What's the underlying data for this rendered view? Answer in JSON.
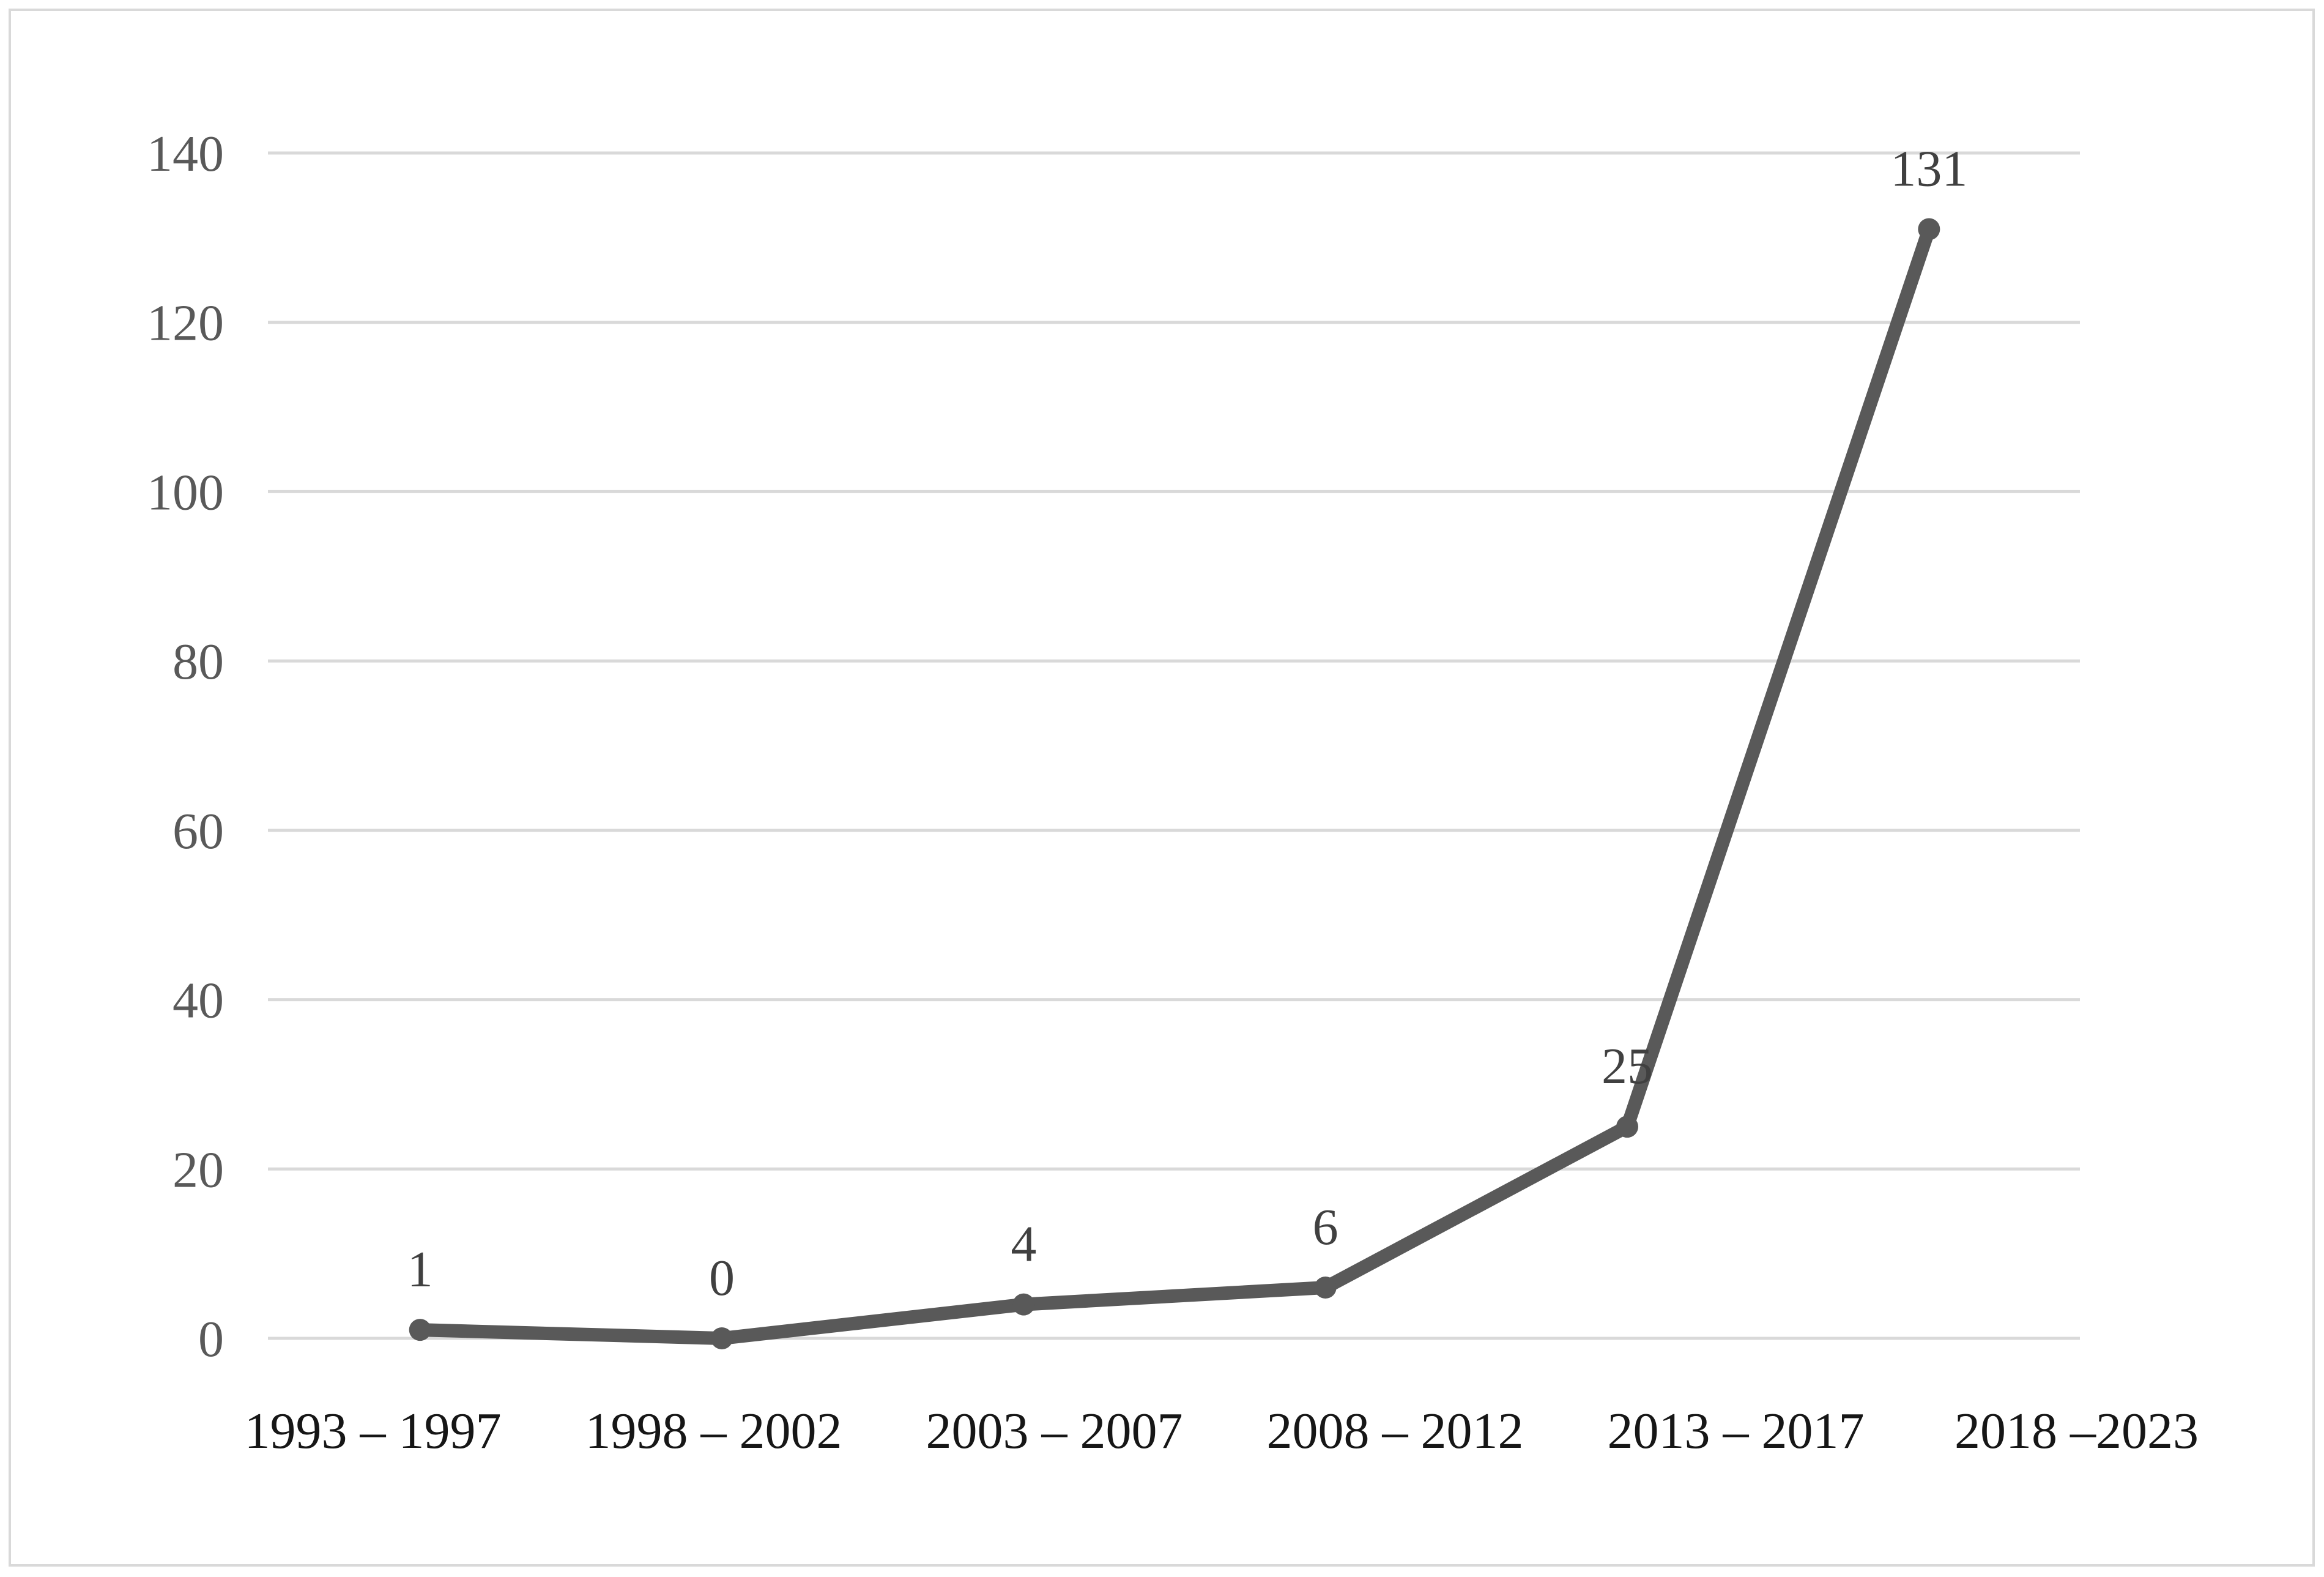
{
  "chart_data": {
    "type": "line",
    "categories": [
      "1993 – 1997",
      "1998 – 2002",
      "2003 – 2007",
      "2008 – 2012",
      "2013 – 2017",
      "2018 –2023"
    ],
    "values": [
      1,
      0,
      4,
      6,
      25,
      131
    ],
    "data_labels": [
      "1",
      "0",
      "4",
      "6",
      "25",
      "131"
    ],
    "yticks": [
      "0",
      "20",
      "40",
      "60",
      "80",
      "100",
      "120",
      "140"
    ],
    "ytick_values": [
      0,
      20,
      40,
      60,
      80,
      100,
      120,
      140
    ],
    "ylim": [
      0,
      140
    ],
    "grid": "horizontal",
    "legend": "none",
    "marker": "circle",
    "colors": {
      "line": "#595959",
      "marker": "#595959",
      "gridline": "#d9d9d9",
      "figure_border": "#d9d9d9",
      "ytick_label": "#595959",
      "xtick_label": "#161616",
      "data_label": "#404040",
      "background": "#ffffff"
    }
  }
}
